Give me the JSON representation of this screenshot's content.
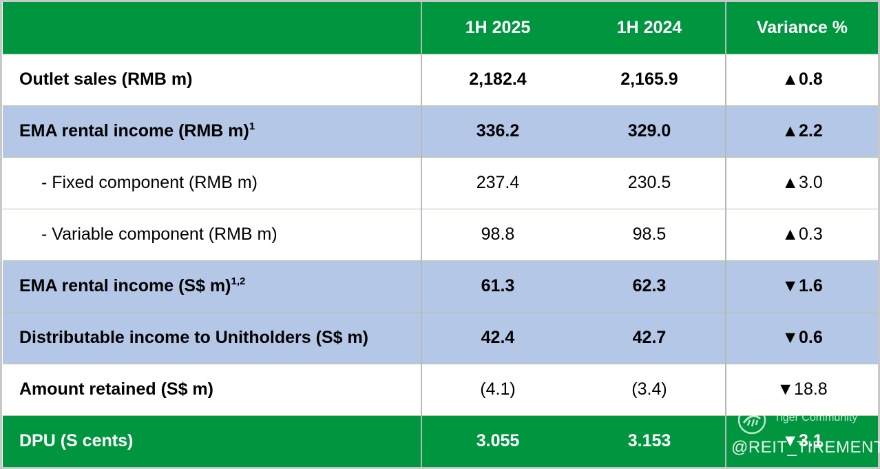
{
  "table": {
    "headers": [
      "",
      "1H 2025",
      "1H 2024",
      "Variance %"
    ],
    "rows": [
      {
        "label": "Outlet sales (RMB m)",
        "sup": "",
        "v2025": "2,182.4",
        "v2024": "2,165.9",
        "variance": "▲0.8"
      },
      {
        "label": "EMA rental income (RMB m)",
        "sup": "1",
        "v2025": "336.2",
        "v2024": "329.0",
        "variance": "▲2.2"
      },
      {
        "label": "- Fixed component (RMB m)",
        "sup": "",
        "v2025": "237.4",
        "v2024": "230.5",
        "variance": "▲3.0"
      },
      {
        "label": "- Variable component (RMB m)",
        "sup": "",
        "v2025": "98.8",
        "v2024": "98.5",
        "variance": "▲0.3"
      },
      {
        "label": "EMA rental income (S$ m)",
        "sup": "1,2",
        "v2025": "61.3",
        "v2024": "62.3",
        "variance": "▼1.6"
      },
      {
        "label": "Distributable income to Unitholders (S$ m)",
        "sup": "",
        "v2025": "42.4",
        "v2024": "42.7",
        "variance": "▼0.6"
      },
      {
        "label": "Amount retained (S$ m)",
        "sup": "",
        "v2025": "(4.1)",
        "v2024": "(3.4)",
        "variance": "▼18.8"
      },
      {
        "label": "DPU (S cents)",
        "sup": "",
        "v2025": "3.055",
        "v2024": "3.153",
        "variance": "▼3.1"
      }
    ]
  },
  "watermark": {
    "brand": "Tiger Community",
    "handle": "@REIT_TIREMENT",
    "logo_icon": "tiger-community-logo-icon"
  },
  "colors": {
    "header_green": "#00963f",
    "row_blue": "#b4c7e7",
    "row_white": "#ffffff"
  }
}
